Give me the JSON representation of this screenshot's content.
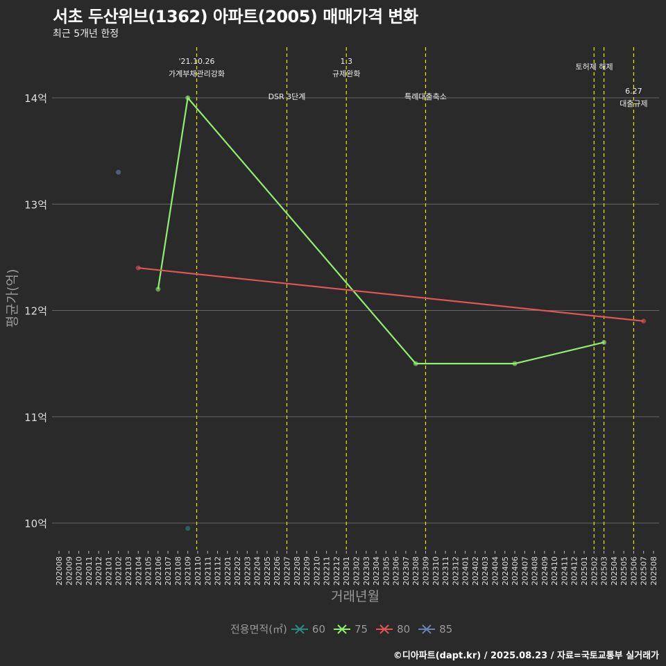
{
  "header": {
    "title": "서초 두산위브(1362) 아파트(2005) 매매가격 변화",
    "subtitle": "최근 5개년 한정"
  },
  "caption": "©디아파트(dapt.kr) / 2025.08.23 / 자료=국토교통부 실거래가",
  "chart_data": {
    "type": "line",
    "title": "서초 두산위브(1362) 아파트(2005) 매매가격 변화",
    "xlabel": "거래년월",
    "ylabel": "평균가(억)",
    "categories": [
      "202008",
      "202009",
      "202010",
      "202011",
      "202012",
      "202101",
      "202102",
      "202103",
      "202104",
      "202105",
      "202106",
      "202107",
      "202108",
      "202109",
      "202110",
      "202111",
      "202112",
      "202201",
      "202202",
      "202203",
      "202204",
      "202205",
      "202206",
      "202207",
      "202208",
      "202209",
      "202210",
      "202211",
      "202212",
      "202301",
      "202302",
      "202303",
      "202304",
      "202305",
      "202306",
      "202307",
      "202308",
      "202309",
      "202310",
      "202311",
      "202312",
      "202401",
      "202402",
      "202403",
      "202404",
      "202405",
      "202406",
      "202407",
      "202408",
      "202409",
      "202410",
      "202411",
      "202412",
      "202501",
      "202502",
      "202503",
      "202504",
      "202505",
      "202506",
      "202507",
      "202508"
    ],
    "ylim": [
      9.75,
      14.5
    ],
    "yticks": [
      {
        "v": 10,
        "label": "10억"
      },
      {
        "v": 11,
        "label": "11억"
      },
      {
        "v": 12,
        "label": "12억"
      },
      {
        "v": 13,
        "label": "13억"
      },
      {
        "v": 14,
        "label": "14억"
      }
    ],
    "legend_title": "전용면적(㎡)",
    "series": [
      {
        "name": "60",
        "color": "#2a8a80",
        "points": [
          {
            "x": "202109",
            "y": 9.95
          }
        ]
      },
      {
        "name": "75",
        "color": "#90ee70",
        "points": [
          {
            "x": "202106",
            "y": 12.2
          },
          {
            "x": "202109",
            "y": 14.0
          },
          {
            "x": "202308",
            "y": 11.5
          },
          {
            "x": "202406",
            "y": 11.5
          },
          {
            "x": "202503",
            "y": 11.7
          }
        ]
      },
      {
        "name": "80",
        "color": "#e05555",
        "points": [
          {
            "x": "202104",
            "y": 12.4
          },
          {
            "x": "202507",
            "y": 11.9
          }
        ]
      },
      {
        "name": "85",
        "color": "#6a80b0",
        "points": [
          {
            "x": "202102",
            "y": 13.3
          }
        ]
      }
    ],
    "events": [
      {
        "month_index": 13.9,
        "lines": [
          "'21.10.26",
          "가계부채관리강화"
        ],
        "row": 0
      },
      {
        "month_index": 23,
        "lines": [
          "DSR 3단계"
        ],
        "row": 2
      },
      {
        "month_index": 29,
        "lines": [
          "1.3",
          "규제완화"
        ],
        "row": 0
      },
      {
        "month_index": 37,
        "lines": [
          "특례대출축소"
        ],
        "row": 2
      },
      {
        "month_index": 54,
        "lines": [],
        "row": 0
      },
      {
        "month_index": 55,
        "lines": [
          "토허제 해제"
        ],
        "row": 1
      },
      {
        "month_index": 58,
        "lines": [
          "6.27",
          "대출규제"
        ],
        "row": 3
      }
    ]
  }
}
